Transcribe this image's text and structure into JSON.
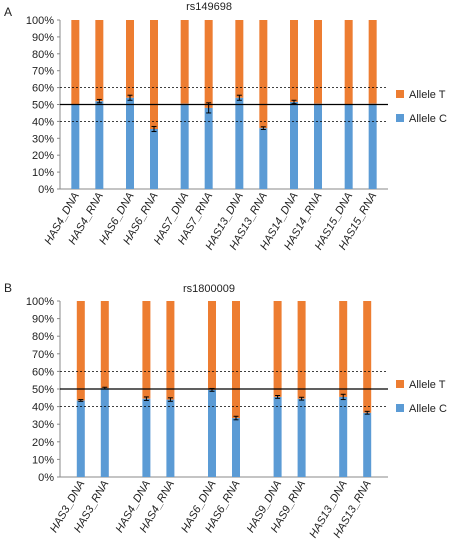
{
  "colors": {
    "allele_t": "#ED7D31",
    "allele_c": "#5B9BD5",
    "axis": "#888888",
    "ref_line": "#000000"
  },
  "chart_data": [
    {
      "type": "bar",
      "stacked": true,
      "percent": true,
      "panel_label": "A",
      "title": "rs149698",
      "categories": [
        "HAS4_DNA",
        "HAS4_RNA",
        "HAS6_DNA",
        "HAS6_RNA",
        "HAS7_DNA",
        "HAS7_RNA",
        "HAS13_DNA",
        "HAS13_RNA",
        "HAS14_DNA",
        "HAS14_RNA",
        "HAS15_DNA",
        "HAS15_RNA"
      ],
      "groups": [
        2,
        2,
        2,
        2,
        2,
        2
      ],
      "series": [
        {
          "name": "Allele C",
          "color": "#5B9BD5",
          "values": [
            50,
            52,
            54,
            35.5,
            50.5,
            48,
            54,
            36,
            51.5,
            50.5,
            50,
            50.5
          ],
          "error": [
            0,
            1,
            1.5,
            1.5,
            0,
            3,
            1.5,
            0.8,
            1,
            0,
            0,
            0
          ]
        },
        {
          "name": "Allele T",
          "color": "#ED7D31",
          "values": [
            50,
            48,
            46,
            64.5,
            49.5,
            52,
            46,
            64,
            48.5,
            49.5,
            50,
            49.5
          ]
        }
      ],
      "ylim": [
        0,
        100
      ],
      "yticks": [
        "0%",
        "10%",
        "20%",
        "30%",
        "40%",
        "50%",
        "60%",
        "70%",
        "80%",
        "90%",
        "100%"
      ],
      "reference_lines": {
        "solid": 50,
        "dotted": [
          40,
          60
        ]
      },
      "legend": {
        "position": "right",
        "items": [
          "Allele T",
          "Allele C"
        ]
      },
      "grid": false
    },
    {
      "type": "bar",
      "stacked": true,
      "percent": true,
      "panel_label": "B",
      "title": "rs1800009",
      "categories": [
        "HAS3_DNA",
        "HAS3_RNA",
        "HAS4_DNA",
        "HAS4_RNA",
        "HAS6_DNA",
        "HAS6_RNA",
        "HAS9_DNA",
        "HAS9_RNA",
        "HAS13_DNA",
        "HAS13_RNA"
      ],
      "groups": [
        2,
        2,
        2,
        2,
        2
      ],
      "series": [
        {
          "name": "Allele C",
          "color": "#5B9BD5",
          "values": [
            43.5,
            50.5,
            44.5,
            44,
            49.5,
            33.5,
            45.5,
            44.5,
            45.5,
            36.5
          ],
          "error": [
            0.5,
            0.5,
            1,
            1,
            0.8,
            1,
            0.8,
            0.8,
            1.5,
            0.8
          ]
        },
        {
          "name": "Allele T",
          "color": "#ED7D31",
          "values": [
            56.5,
            49.5,
            55.5,
            56,
            50.5,
            66.5,
            54.5,
            55.5,
            54.5,
            63.5
          ]
        }
      ],
      "ylim": [
        0,
        100
      ],
      "yticks": [
        "0%",
        "10%",
        "20%",
        "30%",
        "40%",
        "50%",
        "60%",
        "70%",
        "80%",
        "90%",
        "100%"
      ],
      "reference_lines": {
        "solid": 50,
        "dotted": [
          40,
          60
        ]
      },
      "legend": {
        "position": "right",
        "items": [
          "Allele T",
          "Allele C"
        ]
      },
      "grid": false
    }
  ]
}
